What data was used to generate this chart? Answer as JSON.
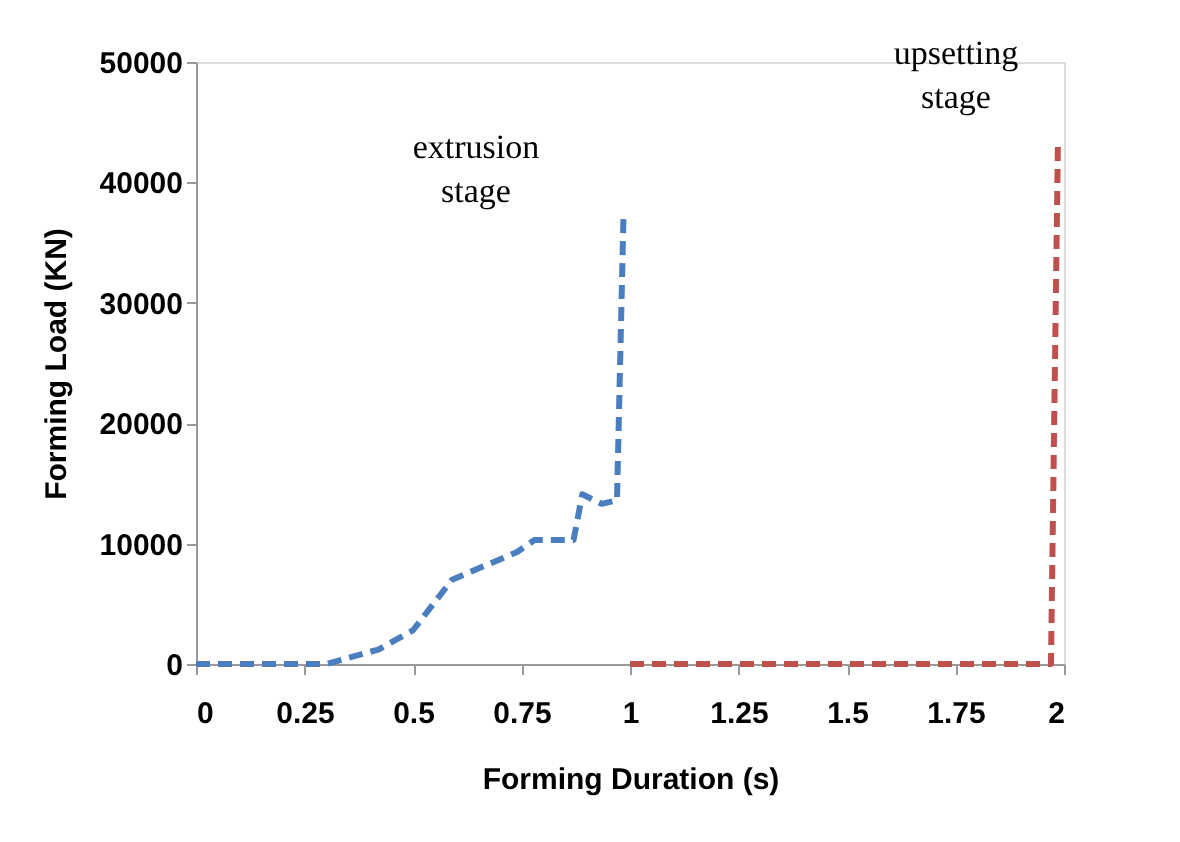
{
  "chart_data": {
    "type": "line",
    "xlabel": "Forming Duration (s)",
    "ylabel": "Forming Load (KN)",
    "xlim": [
      0,
      2
    ],
    "xticks": [
      0,
      0.25,
      0.5,
      0.75,
      1,
      1.25,
      1.5,
      1.75,
      2
    ],
    "ylim": [
      0,
      50000
    ],
    "yticks": [
      0,
      10000,
      20000,
      30000,
      40000,
      50000
    ],
    "grid": false,
    "marker": "none",
    "line_style": "dashed",
    "series": [
      {
        "color": "#4a7ebf",
        "x": [
          0,
          0.3,
          0.42,
          0.5,
          0.59,
          0.74,
          0.78,
          0.87,
          0.89,
          0.935,
          0.97,
          0.985
        ],
        "values": [
          0,
          0,
          1200,
          2800,
          7000,
          9300,
          10300,
          10300,
          14100,
          13300,
          13600,
          37200
        ]
      },
      {
        "color": "#c0504d",
        "x": [
          1,
          1.97,
          1.986
        ],
        "values": [
          0,
          0,
          43400
        ]
      }
    ],
    "annotations": [
      "extrusion stage",
      "upsetting stage"
    ]
  }
}
